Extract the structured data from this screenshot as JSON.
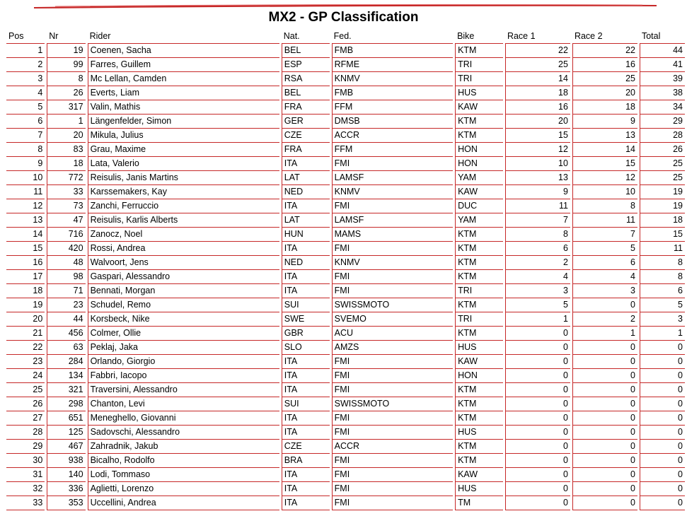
{
  "title": "MX2 - GP Classification",
  "accent_color": "#c62828",
  "headers": {
    "pos": "Pos",
    "nr": "Nr",
    "rider": "Rider",
    "nat": "Nat.",
    "fed": "Fed.",
    "bike": "Bike",
    "race1": "Race 1",
    "race2": "Race 2",
    "total": "Total"
  },
  "rows": [
    [
      "1",
      "19",
      "Coenen, Sacha",
      "BEL",
      "FMB",
      "KTM",
      "22",
      "22",
      "44"
    ],
    [
      "2",
      "99",
      "Farres, Guillem",
      "ESP",
      "RFME",
      "TRI",
      "25",
      "16",
      "41"
    ],
    [
      "3",
      "8",
      "Mc Lellan, Camden",
      "RSA",
      "KNMV",
      "TRI",
      "14",
      "25",
      "39"
    ],
    [
      "4",
      "26",
      "Everts, Liam",
      "BEL",
      "FMB",
      "HUS",
      "18",
      "20",
      "38"
    ],
    [
      "5",
      "317",
      "Valin, Mathis",
      "FRA",
      "FFM",
      "KAW",
      "16",
      "18",
      "34"
    ],
    [
      "6",
      "1",
      "Längenfelder, Simon",
      "GER",
      "DMSB",
      "KTM",
      "20",
      "9",
      "29"
    ],
    [
      "7",
      "20",
      "Mikula, Julius",
      "CZE",
      "ACCR",
      "KTM",
      "15",
      "13",
      "28"
    ],
    [
      "8",
      "83",
      "Grau, Maxime",
      "FRA",
      "FFM",
      "HON",
      "12",
      "14",
      "26"
    ],
    [
      "9",
      "18",
      "Lata, Valerio",
      "ITA",
      "FMI",
      "HON",
      "10",
      "15",
      "25"
    ],
    [
      "10",
      "772",
      "Reisulis, Janis Martins",
      "LAT",
      "LAMSF",
      "YAM",
      "13",
      "12",
      "25"
    ],
    [
      "11",
      "33",
      "Karssemakers, Kay",
      "NED",
      "KNMV",
      "KAW",
      "9",
      "10",
      "19"
    ],
    [
      "12",
      "73",
      "Zanchi, Ferruccio",
      "ITA",
      "FMI",
      "DUC",
      "11",
      "8",
      "19"
    ],
    [
      "13",
      "47",
      "Reisulis, Karlis Alberts",
      "LAT",
      "LAMSF",
      "YAM",
      "7",
      "11",
      "18"
    ],
    [
      "14",
      "716",
      "Zanocz, Noel",
      "HUN",
      "MAMS",
      "KTM",
      "8",
      "7",
      "15"
    ],
    [
      "15",
      "420",
      "Rossi, Andrea",
      "ITA",
      "FMI",
      "KTM",
      "6",
      "5",
      "11"
    ],
    [
      "16",
      "48",
      "Walvoort, Jens",
      "NED",
      "KNMV",
      "KTM",
      "2",
      "6",
      "8"
    ],
    [
      "17",
      "98",
      "Gaspari, Alessandro",
      "ITA",
      "FMI",
      "KTM",
      "4",
      "4",
      "8"
    ],
    [
      "18",
      "71",
      "Bennati, Morgan",
      "ITA",
      "FMI",
      "TRI",
      "3",
      "3",
      "6"
    ],
    [
      "19",
      "23",
      "Schudel, Remo",
      "SUI",
      "SWISSMOTO",
      "KTM",
      "5",
      "0",
      "5"
    ],
    [
      "20",
      "44",
      "Korsbeck, Nike",
      "SWE",
      "SVEMO",
      "TRI",
      "1",
      "2",
      "3"
    ],
    [
      "21",
      "456",
      "Colmer, Ollie",
      "GBR",
      "ACU",
      "KTM",
      "0",
      "1",
      "1"
    ],
    [
      "22",
      "63",
      "Peklaj, Jaka",
      "SLO",
      "AMZS",
      "HUS",
      "0",
      "0",
      "0"
    ],
    [
      "23",
      "284",
      "Orlando, Giorgio",
      "ITA",
      "FMI",
      "KAW",
      "0",
      "0",
      "0"
    ],
    [
      "24",
      "134",
      "Fabbri, Iacopo",
      "ITA",
      "FMI",
      "HON",
      "0",
      "0",
      "0"
    ],
    [
      "25",
      "321",
      "Traversini, Alessandro",
      "ITA",
      "FMI",
      "KTM",
      "0",
      "0",
      "0"
    ],
    [
      "26",
      "298",
      "Chanton, Levi",
      "SUI",
      "SWISSMOTO",
      "KTM",
      "0",
      "0",
      "0"
    ],
    [
      "27",
      "651",
      "Meneghello, Giovanni",
      "ITA",
      "FMI",
      "KTM",
      "0",
      "0",
      "0"
    ],
    [
      "28",
      "125",
      "Sadovschi, Alessandro",
      "ITA",
      "FMI",
      "HUS",
      "0",
      "0",
      "0"
    ],
    [
      "29",
      "467",
      "Zahradnik, Jakub",
      "CZE",
      "ACCR",
      "KTM",
      "0",
      "0",
      "0"
    ],
    [
      "30",
      "938",
      "Bicalho, Rodolfo",
      "BRA",
      "FMI",
      "KTM",
      "0",
      "0",
      "0"
    ],
    [
      "31",
      "140",
      "Lodi, Tommaso",
      "ITA",
      "FMI",
      "KAW",
      "0",
      "0",
      "0"
    ],
    [
      "32",
      "336",
      "Aglietti, Lorenzo",
      "ITA",
      "FMI",
      "HUS",
      "0",
      "0",
      "0"
    ],
    [
      "33",
      "353",
      "Uccellini, Andrea",
      "ITA",
      "FMI",
      "TM",
      "0",
      "0",
      "0"
    ]
  ]
}
